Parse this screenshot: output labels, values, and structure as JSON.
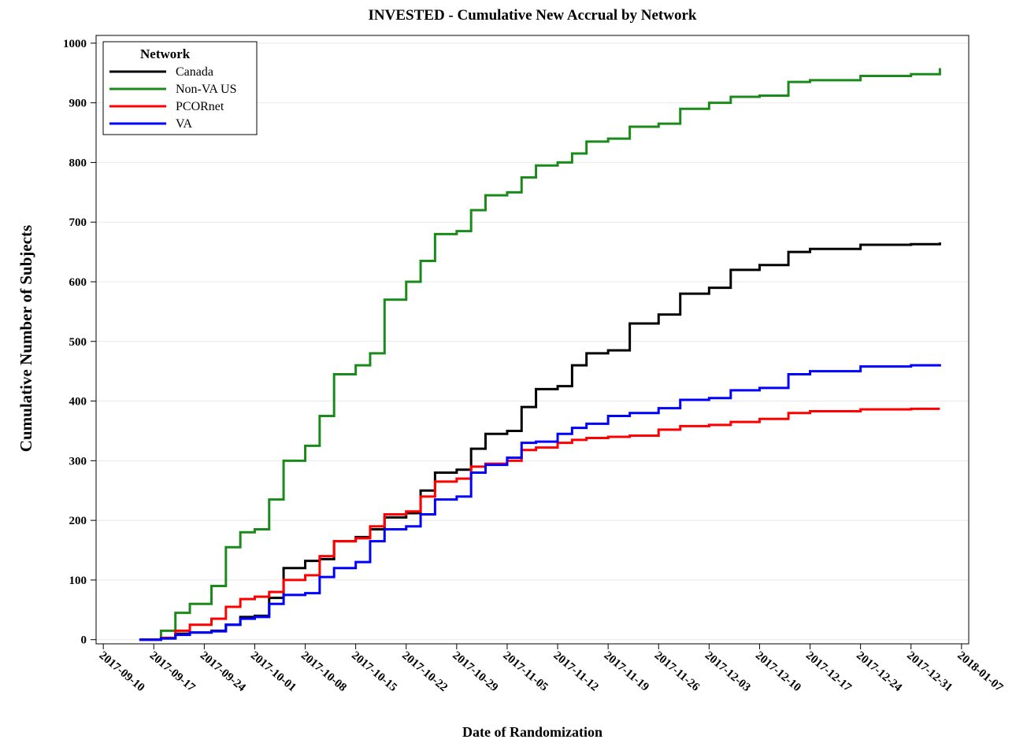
{
  "chart_data": {
    "type": "step",
    "title": "INVESTED - Cumulative New Accrual by Network",
    "x_label": "Date of Randomization",
    "y_label": "Cumulative Number of Subjects",
    "legend_title": "Network",
    "legend_position": "upper left",
    "x": [
      "2017-09-15",
      "2017-09-18",
      "2017-09-20",
      "2017-09-22",
      "2017-09-25",
      "2017-09-27",
      "2017-09-29",
      "2017-10-01",
      "2017-10-03",
      "2017-10-05",
      "2017-10-08",
      "2017-10-10",
      "2017-10-12",
      "2017-10-15",
      "2017-10-17",
      "2017-10-19",
      "2017-10-22",
      "2017-10-24",
      "2017-10-26",
      "2017-10-29",
      "2017-10-31",
      "2017-11-02",
      "2017-11-05",
      "2017-11-07",
      "2017-11-09",
      "2017-11-12",
      "2017-11-14",
      "2017-11-16",
      "2017-11-19",
      "2017-11-22",
      "2017-11-26",
      "2017-11-29",
      "2017-12-03",
      "2017-12-06",
      "2017-12-10",
      "2017-12-14",
      "2017-12-17",
      "2017-12-24",
      "2017-12-31",
      "2018-01-04"
    ],
    "series": [
      {
        "name": "Canada",
        "color": "#000000",
        "values": [
          0,
          2,
          10,
          12,
          15,
          25,
          38,
          40,
          70,
          120,
          132,
          135,
          165,
          172,
          185,
          205,
          212,
          250,
          280,
          285,
          320,
          345,
          350,
          390,
          420,
          425,
          460,
          480,
          485,
          530,
          545,
          580,
          590,
          620,
          628,
          650,
          655,
          662,
          663,
          666
        ]
      },
      {
        "name": "Non-VA US",
        "color": "#1a8a1a",
        "values": [
          0,
          15,
          45,
          60,
          90,
          155,
          180,
          185,
          235,
          300,
          325,
          375,
          445,
          460,
          480,
          570,
          600,
          635,
          680,
          685,
          720,
          745,
          750,
          775,
          795,
          800,
          815,
          835,
          840,
          860,
          865,
          890,
          900,
          910,
          912,
          935,
          938,
          945,
          948,
          958
        ]
      },
      {
        "name": "PCORnet",
        "color": "#ff0000",
        "values": [
          0,
          3,
          15,
          25,
          35,
          55,
          68,
          72,
          80,
          100,
          108,
          140,
          165,
          170,
          190,
          210,
          215,
          240,
          265,
          270,
          290,
          295,
          300,
          318,
          322,
          330,
          335,
          338,
          340,
          342,
          352,
          358,
          360,
          365,
          370,
          380,
          383,
          386,
          387,
          387
        ]
      },
      {
        "name": "VA",
        "color": "#0000ff",
        "values": [
          0,
          2,
          8,
          12,
          14,
          25,
          35,
          38,
          60,
          75,
          78,
          105,
          120,
          130,
          165,
          185,
          190,
          210,
          235,
          240,
          280,
          293,
          305,
          330,
          332,
          345,
          355,
          362,
          375,
          380,
          388,
          402,
          405,
          418,
          422,
          445,
          450,
          458,
          460,
          462
        ]
      }
    ],
    "xlim": [
      "2017-09-09",
      "2018-01-08"
    ],
    "xticks": [
      "2017-09-10",
      "2017-09-17",
      "2017-09-24",
      "2017-10-01",
      "2017-10-08",
      "2017-10-15",
      "2017-10-22",
      "2017-10-29",
      "2017-11-05",
      "2017-11-12",
      "2017-11-19",
      "2017-11-26",
      "2017-12-03",
      "2017-12-10",
      "2017-12-17",
      "2017-12-24",
      "2017-12-31",
      "2018-01-07"
    ],
    "ylim": [
      -7,
      1013
    ],
    "yticks": [
      0,
      100,
      200,
      300,
      400,
      500,
      600,
      700,
      800,
      900,
      1000
    ],
    "grid": true
  }
}
